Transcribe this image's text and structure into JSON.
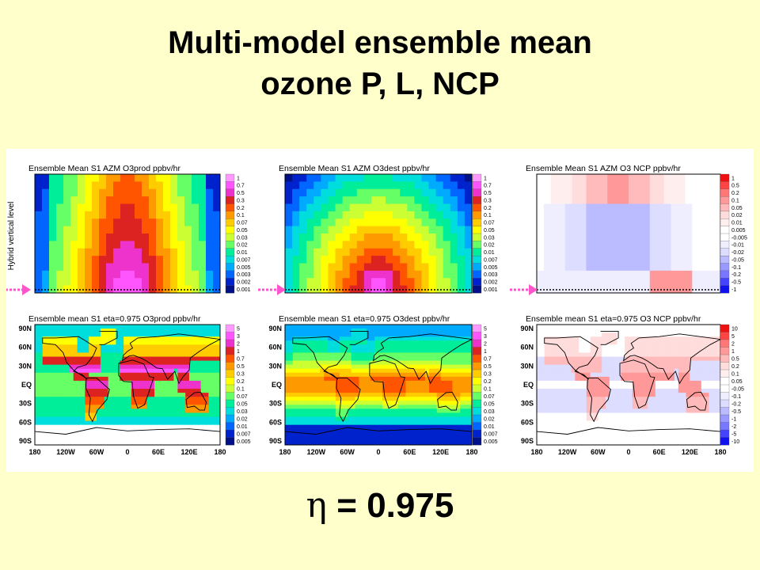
{
  "slide": {
    "title_line1": "Multi-model ensemble mean",
    "title_line2": "ozone P, L, NCP",
    "eta_symbol": "η",
    "eta_value": "= 0.975"
  },
  "figure": {
    "y_axis_label": "Hybrid vertical level",
    "lat_labels": [
      "90N",
      "60N",
      "30N",
      "EQ",
      "30S",
      "60S",
      "90S"
    ],
    "lon_labels": [
      "180",
      "120W",
      "60W",
      "0",
      "60E",
      "120E",
      "180"
    ],
    "panels": [
      {
        "id": "top-prod",
        "title": "Ensemble Mean S1 AZM O3prod ppbv/hr",
        "type": "prod",
        "map": false
      },
      {
        "id": "top-dest",
        "title": "Ensemble Mean S1 AZM O3dest ppbv/hr",
        "type": "dest",
        "map": false
      },
      {
        "id": "top-ncp",
        "title": "Ensemble Mean S1 AZM O3 NCP ppbv/hr",
        "type": "ncp",
        "map": false
      },
      {
        "id": "bot-prod",
        "title": "Ensemble mean S1 eta=0.975 O3prod ppbv/hr",
        "type": "prod",
        "map": true
      },
      {
        "id": "bot-dest",
        "title": "Ensemble mean S1 eta=0.975 O3dest ppbv/hr",
        "type": "dest",
        "map": true
      },
      {
        "id": "bot-ncp",
        "title": "Ensemble mean S1 eta=0.975 O3 NCP ppbv/hr",
        "type": "ncp",
        "map": true
      }
    ],
    "legends": {
      "top_prod": [
        "1",
        "0.7",
        "0.5",
        "0.3",
        "0.2",
        "0.1",
        "0.07",
        "0.05",
        "0.03",
        "0.02",
        "0.01",
        "0.007",
        "0.005",
        "0.003",
        "0.002",
        "0.001"
      ],
      "top_ncp": [
        "1",
        "0.5",
        "0.2",
        "0.1",
        "0.05",
        "0.02",
        "0.01",
        "0.005",
        "-0.005",
        "-0.01",
        "-0.02",
        "-0.05",
        "-0.1",
        "-0.2",
        "-0.5",
        "-1"
      ],
      "bot_prod": [
        "5",
        "3",
        "2",
        "1",
        "0.7",
        "0.5",
        "0.3",
        "0.2",
        "0.1",
        "0.07",
        "0.05",
        "0.03",
        "0.02",
        "0.01",
        "0.007",
        "0.005"
      ],
      "bot_ncp": [
        "10",
        "5",
        "2",
        "1",
        "0.5",
        "0.2",
        "0.1",
        "0.05",
        "-0.05",
        "-0.1",
        "-0.2",
        "-0.5",
        "-1",
        "-2",
        "-5",
        "-10"
      ]
    },
    "colors": {
      "rainbow": [
        "#ff99ff",
        "#ff55ff",
        "#ee33cc",
        "#dd2222",
        "#ff5500",
        "#ff9900",
        "#ffcc00",
        "#ffff00",
        "#ccff33",
        "#66ff66",
        "#00ee99",
        "#00dddd",
        "#00aaff",
        "#0066ff",
        "#0022cc",
        "#001188"
      ],
      "diverging": [
        "#ee1111",
        "#ff4444",
        "#ff7777",
        "#ff9999",
        "#ffbbbb",
        "#ffdddd",
        "#ffeeee",
        "#ffffff",
        "#ffffff",
        "#eeeeff",
        "#ddddff",
        "#bbbbff",
        "#9999ff",
        "#7777ff",
        "#4444ff",
        "#1111ee"
      ],
      "arrow": "#ff55cc"
    }
  }
}
